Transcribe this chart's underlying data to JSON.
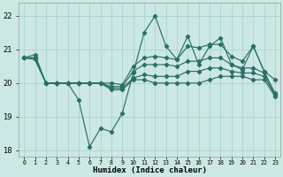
{
  "xlabel": "Humidex (Indice chaleur)",
  "background_color": "#cce8e4",
  "grid_color": "#aad4d0",
  "line_color": "#2a7068",
  "hours": [
    0,
    1,
    2,
    3,
    4,
    5,
    6,
    7,
    8,
    9,
    10,
    11,
    12,
    13,
    14,
    15,
    16,
    17,
    18,
    19,
    20,
    21,
    22,
    23
  ],
  "line1": [
    20.75,
    20.85,
    20.0,
    20.0,
    20.0,
    19.5,
    18.1,
    18.65,
    18.55,
    19.1,
    20.3,
    21.5,
    22.0,
    21.1,
    20.7,
    21.4,
    20.55,
    21.1,
    21.35,
    20.55,
    20.4,
    21.1,
    20.35,
    19.65
  ],
  "line2": [
    20.75,
    20.75,
    20.0,
    20.0,
    20.0,
    20.0,
    20.0,
    20.0,
    20.0,
    19.95,
    20.5,
    20.75,
    20.8,
    20.75,
    20.7,
    21.1,
    21.05,
    21.15,
    21.15,
    20.8,
    20.65,
    21.1,
    20.35,
    20.1
  ],
  "line3": [
    20.75,
    20.75,
    20.0,
    20.0,
    20.0,
    20.0,
    20.0,
    20.0,
    19.9,
    19.9,
    20.35,
    20.55,
    20.55,
    20.55,
    20.5,
    20.65,
    20.65,
    20.75,
    20.75,
    20.55,
    20.45,
    20.45,
    20.3,
    19.7
  ],
  "line4": [
    20.75,
    20.75,
    20.0,
    20.0,
    20.0,
    20.0,
    20.0,
    20.0,
    19.85,
    19.85,
    20.15,
    20.25,
    20.2,
    20.2,
    20.2,
    20.35,
    20.35,
    20.45,
    20.45,
    20.35,
    20.3,
    20.3,
    20.2,
    19.65
  ],
  "line5": [
    20.75,
    20.7,
    20.0,
    20.0,
    20.0,
    20.0,
    20.0,
    20.0,
    19.8,
    19.8,
    20.1,
    20.1,
    20.0,
    20.0,
    20.0,
    20.0,
    20.0,
    20.1,
    20.2,
    20.2,
    20.2,
    20.1,
    20.1,
    19.6
  ],
  "ylim": [
    17.8,
    22.4
  ],
  "yticks": [
    18,
    19,
    20,
    21,
    22
  ],
  "xlim": [
    -0.5,
    23.5
  ],
  "figsize": [
    3.2,
    2.0
  ],
  "dpi": 100
}
